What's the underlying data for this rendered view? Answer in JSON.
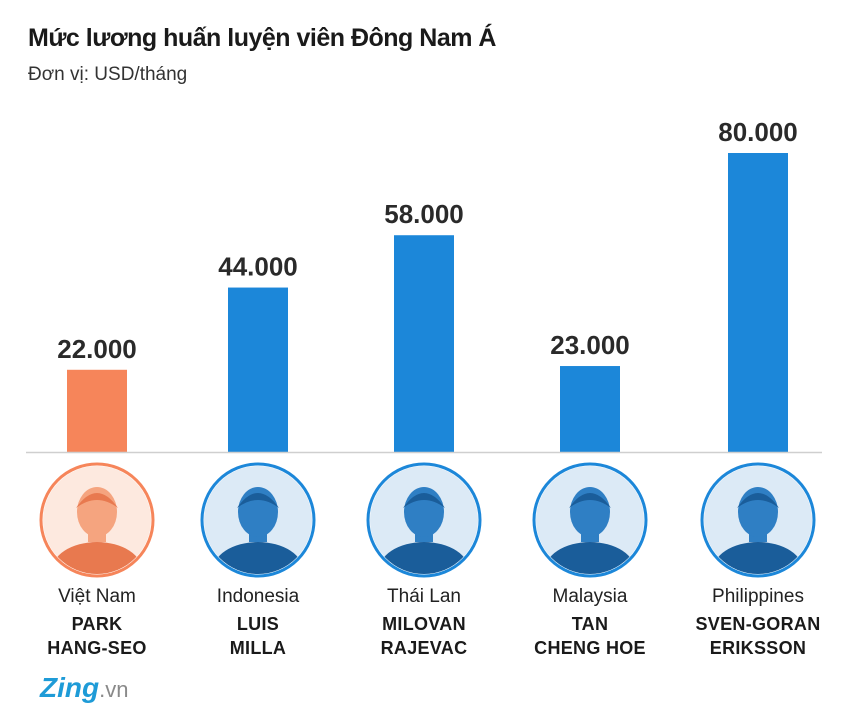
{
  "title": "Mức lương huấn luyện viên Đông Nam Á",
  "subtitle": "Đơn vị: USD/tháng",
  "colors": {
    "highlight": "#f6855a",
    "bar": "#1c87d9",
    "highlight_ring": "#f6855a",
    "ring": "#1c87d9"
  },
  "chart_data": {
    "type": "bar",
    "title": "Mức lương huấn luyện viên Đông Nam Á",
    "unit": "Đơn vị: USD/tháng",
    "categories": [
      "Việt Nam",
      "Indonesia",
      "Thái Lan",
      "Malaysia",
      "Philippines"
    ],
    "values": [
      22000,
      44000,
      58000,
      23000,
      80000
    ],
    "value_labels": [
      "22.000",
      "44.000",
      "58.000",
      "23.000",
      "80.000"
    ],
    "highlight_index": 0,
    "ylim": [
      0,
      80000
    ],
    "grid": false
  },
  "coaches": [
    {
      "country": "Việt Nam",
      "name_line1": "PARK",
      "name_line2": "HANG-SEO",
      "photo_icon": "coach-portrait-icon"
    },
    {
      "country": "Indonesia",
      "name_line1": "LUIS",
      "name_line2": "MILLA",
      "photo_icon": "coach-portrait-icon"
    },
    {
      "country": "Thái Lan",
      "name_line1": "MILOVAN",
      "name_line2": "RAJEVAC",
      "photo_icon": "coach-portrait-icon"
    },
    {
      "country": "Malaysia",
      "name_line1": "TAN",
      "name_line2": "CHENG HOE",
      "photo_icon": "coach-portrait-icon"
    },
    {
      "country": "Philippines",
      "name_line1": "SVEN-GORAN",
      "name_line2": "ERIKSSON",
      "photo_icon": "coach-portrait-icon"
    }
  ],
  "logo": {
    "brand": "Zing",
    "suffix": ".vn"
  }
}
